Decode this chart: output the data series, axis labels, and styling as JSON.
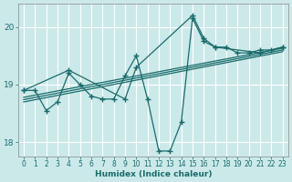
{
  "xlabel": "Humidex (Indice chaleur)",
  "ylabel": "",
  "bg_color": "#cce9e9",
  "grid_color": "#b0d8d8",
  "line_color": "#1a6b6b",
  "xlim": [
    -0.5,
    23.5
  ],
  "ylim": [
    17.75,
    20.4
  ],
  "yticks": [
    18,
    19,
    20
  ],
  "xticks": [
    0,
    1,
    2,
    3,
    4,
    5,
    6,
    7,
    8,
    9,
    10,
    11,
    12,
    13,
    14,
    15,
    16,
    17,
    18,
    19,
    20,
    21,
    22,
    23
  ],
  "series1_x": [
    0,
    1,
    2,
    3,
    4,
    5,
    6,
    7,
    8,
    9,
    10,
    11,
    12,
    13,
    14,
    15,
    16,
    17,
    18,
    19,
    20,
    21,
    22,
    23
  ],
  "series1_y": [
    18.9,
    18.9,
    18.55,
    18.7,
    19.2,
    19.0,
    18.8,
    18.75,
    18.75,
    19.15,
    19.5,
    18.75,
    17.85,
    17.85,
    18.35,
    20.15,
    19.75,
    19.65,
    19.65,
    19.55,
    19.55,
    19.6,
    19.6,
    19.65
  ],
  "series2_x": [
    0,
    4,
    9,
    10,
    15,
    16,
    17,
    21,
    23
  ],
  "series2_y": [
    18.9,
    19.25,
    18.75,
    19.3,
    20.2,
    19.8,
    19.65,
    19.55,
    19.65
  ],
  "trend1_x": [
    0,
    23
  ],
  "trend1_y": [
    18.78,
    19.63
  ],
  "trend2_x": [
    0,
    23
  ],
  "trend2_y": [
    18.74,
    19.6
  ],
  "trend3_x": [
    0,
    23
  ],
  "trend3_y": [
    18.7,
    19.57
  ]
}
